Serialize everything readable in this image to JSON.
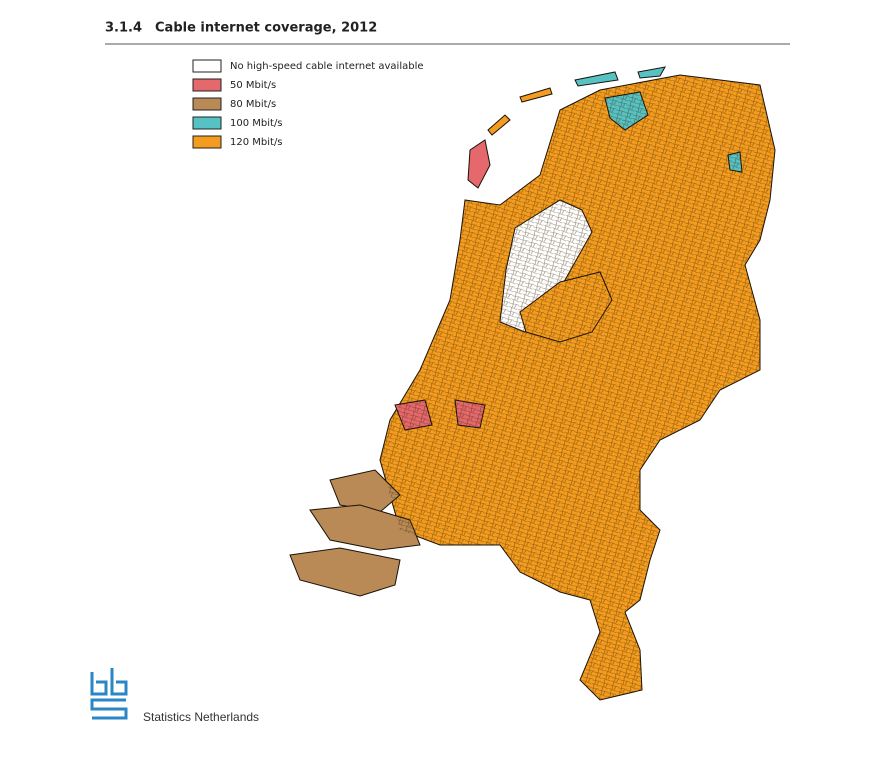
{
  "header": {
    "number": "3.1.4",
    "title": "Cable internet coverage, 2012"
  },
  "legend": [
    {
      "label": "No high-speed cable internet available",
      "color": "#ffffff"
    },
    {
      "label": "50 Mbit/s",
      "color": "#e5686d"
    },
    {
      "label": "80 Mbit/s",
      "color": "#b98a56"
    },
    {
      "label": "100 Mbit/s",
      "color": "#57c2c3"
    },
    {
      "label": "120 Mbit/s",
      "color": "#f39c1f"
    }
  ],
  "footer": {
    "organization": "Statistics Netherlands"
  }
}
